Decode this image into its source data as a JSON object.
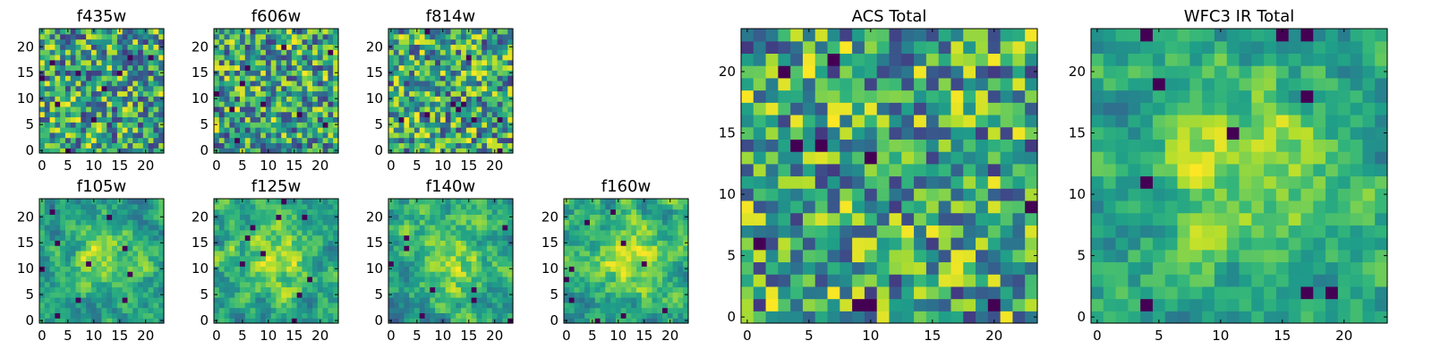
{
  "chart_data": [
    {
      "type": "heatmap",
      "title": "f435w",
      "colormap": "viridis",
      "seed": 11,
      "shape": [
        24,
        24
      ],
      "xticks": [
        0,
        5,
        10,
        15,
        20
      ],
      "yticks": [
        0,
        5,
        10,
        15,
        20
      ],
      "xlim": [
        0,
        24
      ],
      "ylim": [
        0,
        24
      ],
      "style": "noise"
    },
    {
      "type": "heatmap",
      "title": "f606w",
      "colormap": "viridis",
      "seed": 22,
      "shape": [
        24,
        24
      ],
      "xticks": [
        0,
        5,
        10,
        15,
        20
      ],
      "yticks": [
        0,
        5,
        10,
        15,
        20
      ],
      "xlim": [
        0,
        24
      ],
      "ylim": [
        0,
        24
      ],
      "style": "noise"
    },
    {
      "type": "heatmap",
      "title": "f814w",
      "colormap": "viridis",
      "seed": 33,
      "shape": [
        24,
        24
      ],
      "xticks": [
        0,
        5,
        10,
        15,
        20
      ],
      "yticks": [
        0,
        5,
        10,
        15,
        20
      ],
      "xlim": [
        0,
        24
      ],
      "ylim": [
        0,
        24
      ],
      "style": "noise"
    },
    {
      "type": "heatmap",
      "title": "f105w",
      "colormap": "viridis",
      "seed": 44,
      "shape": [
        24,
        24
      ],
      "xticks": [
        0,
        5,
        10,
        15,
        20
      ],
      "yticks": [
        0,
        5,
        10,
        15,
        20
      ],
      "xlim": [
        0,
        24
      ],
      "ylim": [
        0,
        24
      ],
      "style": "blob"
    },
    {
      "type": "heatmap",
      "title": "f125w",
      "colormap": "viridis",
      "seed": 55,
      "shape": [
        24,
        24
      ],
      "xticks": [
        0,
        5,
        10,
        15,
        20
      ],
      "yticks": [
        0,
        5,
        10,
        15,
        20
      ],
      "xlim": [
        0,
        24
      ],
      "ylim": [
        0,
        24
      ],
      "style": "blob"
    },
    {
      "type": "heatmap",
      "title": "f140w",
      "colormap": "viridis",
      "seed": 66,
      "shape": [
        24,
        24
      ],
      "xticks": [
        0,
        5,
        10,
        15,
        20
      ],
      "yticks": [
        0,
        5,
        10,
        15,
        20
      ],
      "xlim": [
        0,
        24
      ],
      "ylim": [
        0,
        24
      ],
      "style": "blob"
    },
    {
      "type": "heatmap",
      "title": "f160w",
      "colormap": "viridis",
      "seed": 77,
      "shape": [
        24,
        24
      ],
      "xticks": [
        0,
        5,
        10,
        15,
        20
      ],
      "yticks": [
        0,
        5,
        10,
        15,
        20
      ],
      "xlim": [
        0,
        24
      ],
      "ylim": [
        0,
        24
      ],
      "style": "blob"
    },
    {
      "type": "heatmap",
      "title": "ACS Total",
      "colormap": "viridis",
      "seed": 88,
      "shape": [
        24,
        24
      ],
      "xticks": [
        0,
        5,
        10,
        15,
        20
      ],
      "yticks": [
        0,
        5,
        10,
        15,
        20
      ],
      "xlim": [
        0,
        24
      ],
      "ylim": [
        0,
        24
      ],
      "style": "noise"
    },
    {
      "type": "heatmap",
      "title": "WFC3 IR Total",
      "colormap": "viridis",
      "seed": 99,
      "shape": [
        24,
        24
      ],
      "xticks": [
        0,
        5,
        10,
        15,
        20
      ],
      "yticks": [
        0,
        5,
        10,
        15,
        20
      ],
      "xlim": [
        0,
        24
      ],
      "ylim": [
        0,
        24
      ],
      "style": "blob"
    }
  ]
}
